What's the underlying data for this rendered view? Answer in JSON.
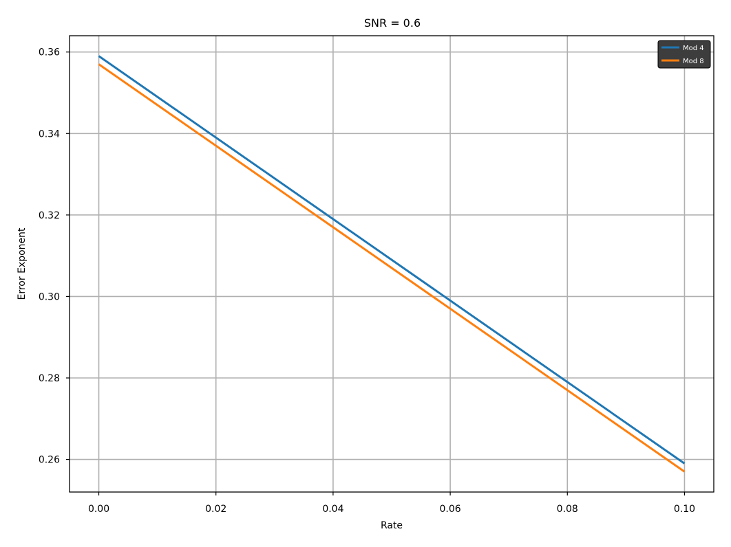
{
  "chart_data": {
    "type": "line",
    "title": "SNR = 0.6",
    "xlabel": "Rate",
    "ylabel": "Error Exponent",
    "xlim": [
      -0.005,
      0.105
    ],
    "ylim": [
      0.252,
      0.364
    ],
    "xticks": [
      0.0,
      0.02,
      0.04,
      0.06,
      0.08,
      0.1
    ],
    "xtick_labels": [
      "0.00",
      "0.02",
      "0.04",
      "0.06",
      "0.08",
      "0.10"
    ],
    "yticks": [
      0.26,
      0.28,
      0.3,
      0.32,
      0.34,
      0.36
    ],
    "ytick_labels": [
      "0.26",
      "0.28",
      "0.30",
      "0.32",
      "0.34",
      "0.36"
    ],
    "grid": true,
    "legend_position": "top-right",
    "series": [
      {
        "name": "Mod 4",
        "color": "#1f77b4",
        "x": [
          0.0,
          0.1
        ],
        "y": [
          0.359,
          0.259
        ]
      },
      {
        "name": "Mod 8",
        "color": "#ff7f0e",
        "x": [
          0.0,
          0.1
        ],
        "y": [
          0.357,
          0.257
        ]
      }
    ]
  }
}
